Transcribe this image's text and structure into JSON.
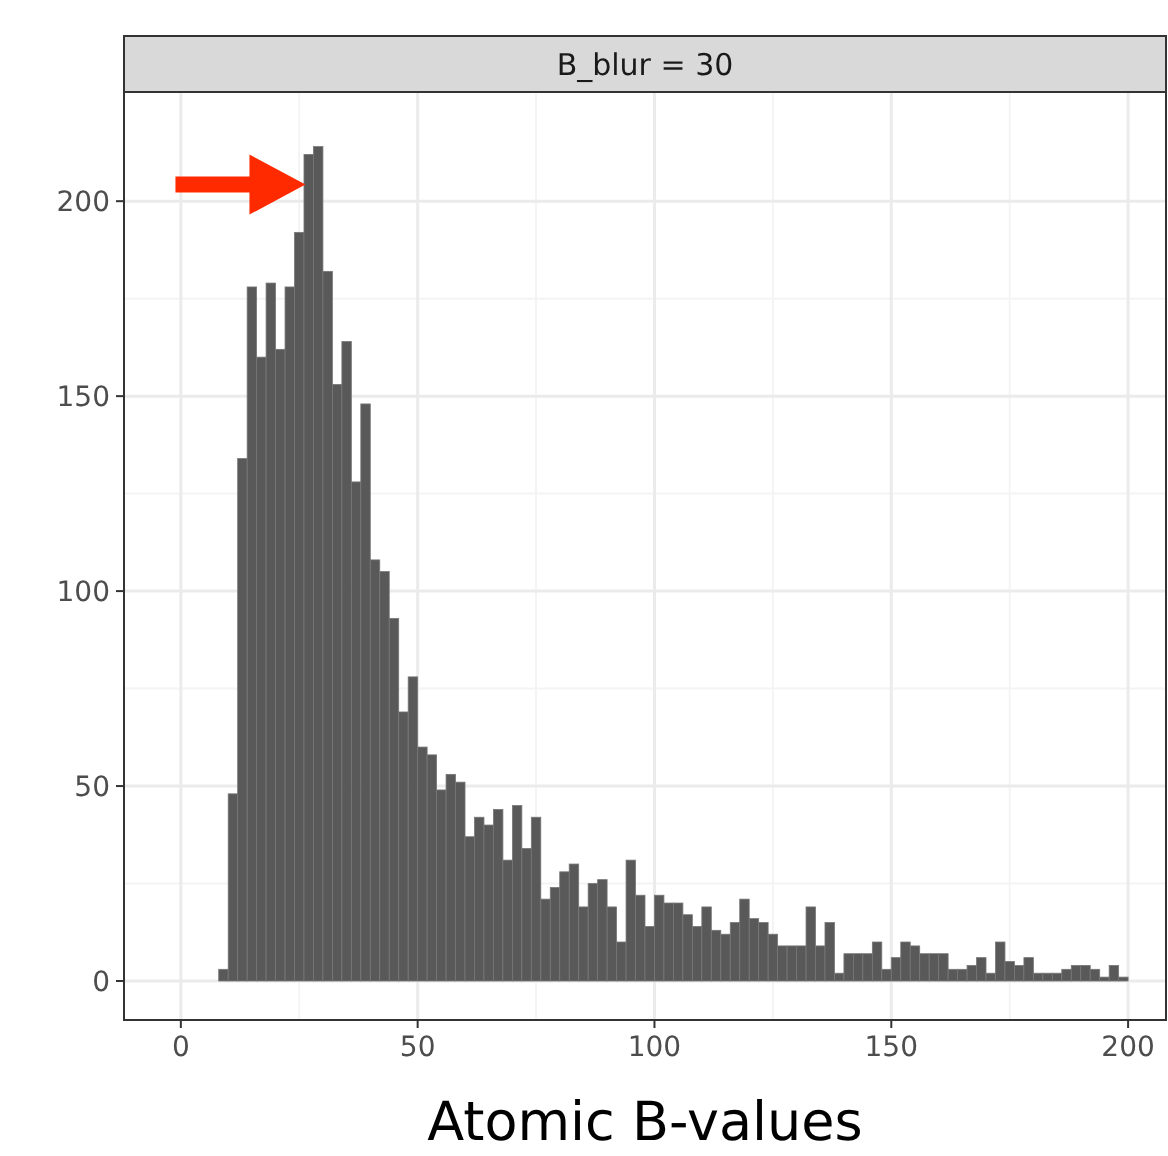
{
  "chart_data": {
    "type": "histogram",
    "title": "B_blur = 30",
    "xlabel": "Atomic B-values",
    "bins": [
      8,
      10,
      12,
      14,
      16,
      18,
      20,
      22,
      24,
      26,
      28,
      30,
      32,
      34,
      36,
      38,
      40,
      42,
      44,
      46,
      48,
      50,
      52,
      54,
      56,
      58,
      60,
      62,
      64,
      66,
      68,
      70,
      72,
      74,
      76,
      78,
      80,
      82,
      84,
      86,
      88,
      90,
      92,
      94,
      96,
      98,
      100,
      102,
      104,
      106,
      108,
      110,
      112,
      114,
      116,
      118,
      120,
      122,
      124,
      126,
      128,
      130,
      132,
      134,
      136,
      138,
      140,
      142,
      144,
      146,
      148,
      150,
      152,
      154,
      156,
      158,
      160,
      162,
      164,
      166,
      168,
      170,
      172,
      174,
      176,
      178,
      180,
      182,
      184,
      186,
      188,
      190,
      192,
      194,
      196,
      198,
      200
    ],
    "values": [
      3,
      48,
      134,
      178,
      160,
      179,
      162,
      178,
      192,
      212,
      214,
      182,
      153,
      164,
      128,
      148,
      108,
      105,
      93,
      69,
      78,
      60,
      58,
      49,
      53,
      51,
      37,
      42,
      40,
      44,
      31,
      45,
      34,
      42,
      21,
      24,
      28,
      30,
      19,
      25,
      26,
      19,
      10,
      31,
      22,
      14,
      22,
      20,
      20,
      17,
      14,
      19,
      13,
      12,
      15,
      21,
      16,
      15,
      12,
      9,
      9,
      9,
      19,
      9,
      15,
      2,
      7,
      7,
      7,
      10,
      3,
      6,
      10,
      9,
      7,
      7,
      7,
      3,
      3,
      4,
      6,
      2,
      10,
      5,
      4,
      6,
      2,
      2,
      2,
      3,
      4,
      4,
      3,
      1,
      4,
      1
    ],
    "color": "#595959",
    "xlim": [
      -12,
      208
    ],
    "xticks": [
      0,
      50,
      100,
      150,
      200
    ],
    "ylim": [
      -10,
      228
    ],
    "yticks": [
      0,
      50,
      100,
      150,
      200
    ],
    "grid": true
  }
}
